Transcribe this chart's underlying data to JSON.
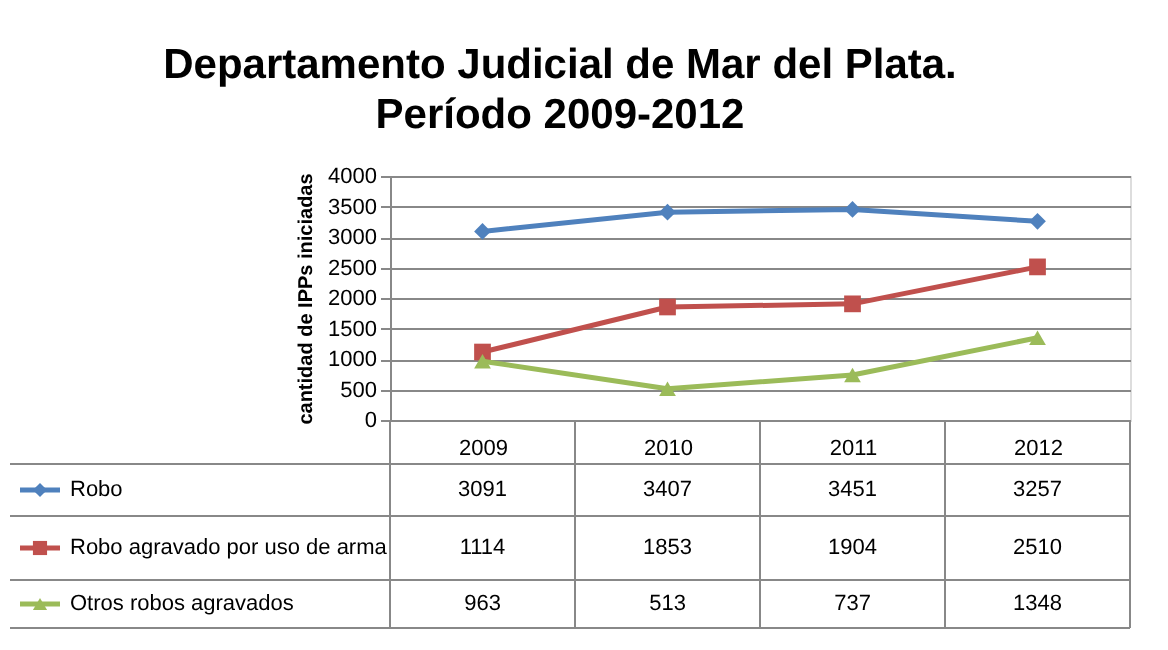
{
  "chart_data": {
    "type": "line",
    "title": "Departamento Judicial de Mar del Plata.",
    "subtitle": "Período  2009-2012",
    "ylabel": "cantidad de IPPs iniciadas",
    "categories": [
      "2009",
      "2010",
      "2011",
      "2012"
    ],
    "series": [
      {
        "name": "Robo",
        "color": "#4f81bd",
        "marker": "diamond",
        "values": [
          3091,
          3407,
          3451,
          3257
        ]
      },
      {
        "name": "Robo agravado por uso de arma",
        "color": "#c0504d",
        "marker": "square",
        "values": [
          1114,
          1853,
          1904,
          2510
        ]
      },
      {
        "name": "Otros robos agravados",
        "color": "#9bbb59",
        "marker": "triangle",
        "values": [
          963,
          513,
          737,
          1348
        ]
      }
    ],
    "ylim": [
      0,
      4000
    ],
    "yticks": [
      0,
      500,
      1000,
      1500,
      2000,
      2500,
      3000,
      3500,
      4000
    ],
    "grid": "y",
    "legend": "bottom",
    "data_labels": true
  }
}
